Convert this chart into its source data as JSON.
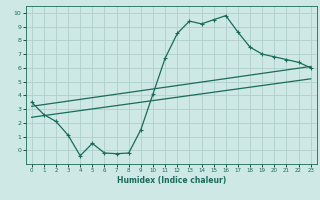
{
  "xlabel": "Humidex (Indice chaleur)",
  "bg_color": "#cde8e5",
  "grid_color": "#b0d0cc",
  "line_color": "#1a6b5a",
  "xlim": [
    -0.5,
    23.5
  ],
  "ylim": [
    -1.0,
    10.5
  ],
  "x_ticks": [
    0,
    1,
    2,
    3,
    4,
    5,
    6,
    7,
    8,
    9,
    10,
    11,
    12,
    13,
    14,
    15,
    16,
    17,
    18,
    19,
    20,
    21,
    22,
    23
  ],
  "y_ticks": [
    0,
    1,
    2,
    3,
    4,
    5,
    6,
    7,
    8,
    9,
    10
  ],
  "curve1_x": [
    0,
    1,
    2,
    3,
    4,
    5,
    6,
    7,
    8,
    9,
    10,
    11,
    12,
    13,
    14,
    15,
    16,
    17,
    18,
    19,
    20,
    21,
    22,
    23
  ],
  "curve1_y": [
    3.5,
    2.6,
    2.1,
    1.1,
    -0.4,
    0.5,
    -0.2,
    -0.25,
    -0.2,
    1.5,
    4.1,
    6.7,
    8.5,
    9.4,
    9.2,
    9.5,
    9.8,
    8.6,
    7.5,
    7.0,
    6.8,
    6.6,
    6.4,
    6.0
  ],
  "line1_x": [
    0,
    23
  ],
  "line1_y": [
    3.2,
    6.1
  ],
  "line2_x": [
    0,
    23
  ],
  "line2_y": [
    2.4,
    5.2
  ]
}
